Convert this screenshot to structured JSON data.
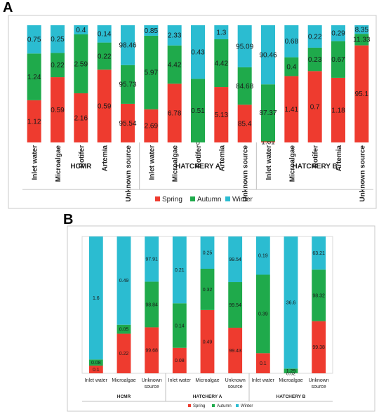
{
  "panels": [
    {
      "letter": "A"
    },
    {
      "letter": "B"
    }
  ],
  "colors": {
    "Spring": "#ee3b2f",
    "Autumn": "#1faa4b",
    "Winter": "#2bbcd1"
  },
  "chart_data": [
    {
      "type": "bar",
      "stacked": true,
      "percent_stacked": true,
      "panel": "A",
      "legend": {
        "position": "bottom",
        "entries": [
          "Spring",
          "Autumn",
          "Winter"
        ]
      },
      "groups": [
        {
          "label": "HCMR",
          "categories": [
            "Inlet water",
            "Microalgae",
            "Rotifer",
            "Artemia",
            "Unknown source"
          ]
        },
        {
          "label": "HATCHERY A",
          "categories": [
            "Inlet water",
            "Microalgae",
            "Rotifer",
            "Artemia",
            "Unknown source"
          ]
        },
        {
          "label": "HATCHERY B",
          "categories": [
            "Inlet water",
            "Microalgae",
            "Rotifer",
            "Artemia",
            "Unknown source"
          ]
        }
      ],
      "categories": [
        "Inlet water",
        "Microalgae",
        "Rotifer",
        "Artemia",
        "Unknown source",
        "Inlet water",
        "Microalgae",
        "Rotifer",
        "Artemia",
        "Unknown source",
        "Inlet water",
        "Microalgae",
        "Rotifer",
        "Artemia",
        "Unknown source"
      ],
      "series": [
        {
          "name": "Spring",
          "values": [
            1.12,
            0.59,
            2.16,
            0.59,
            95.54,
            2.69,
            6.78,
            0,
            5.13,
            85.4,
            1.61,
            1.41,
            0.7,
            1.18,
            95.1
          ]
        },
        {
          "name": "Autumn",
          "values": [
            1.24,
            0.22,
            2.59,
            0.22,
            95.73,
            5.97,
            4.42,
            0.51,
            4.42,
            84.68,
            87.37,
            0.4,
            0.23,
            0.67,
            11.33
          ]
        },
        {
          "name": "Winter",
          "values": [
            0.75,
            0.25,
            0.4,
            0.14,
            98.46,
            0.85,
            2.33,
            0.43,
            1.3,
            95.09,
            90.46,
            0.68,
            0.22,
            0.29,
            8.35
          ]
        }
      ]
    },
    {
      "type": "bar",
      "stacked": true,
      "percent_stacked": true,
      "panel": "B",
      "legend": {
        "position": "bottom",
        "entries": [
          "Spring",
          "Autumn",
          "Winter"
        ]
      },
      "groups": [
        {
          "label": "HCMR",
          "categories": [
            "Inlet water",
            "Microalgae",
            "Unknown source"
          ]
        },
        {
          "label": "HATCHERY A",
          "categories": [
            "Inlet water",
            "Microalgae",
            "Unknown source"
          ]
        },
        {
          "label": "HATCHERY B",
          "categories": [
            "Inlet water",
            "Microalgae",
            "Unknown source"
          ]
        }
      ],
      "categories": [
        "Inlet water",
        "Microalgae",
        "Unknown source",
        "Inlet water",
        "Microalgae",
        "Unknown source",
        "Inlet water",
        "Microalgae",
        "Unknown source"
      ],
      "series": [
        {
          "name": "Spring",
          "values": [
            0.1,
            0.22,
            99.68,
            0.08,
            0.49,
            99.43,
            0.1,
            0.02,
            99.38
          ]
        },
        {
          "name": "Autumn",
          "values": [
            0.08,
            0.05,
            98.84,
            0.14,
            0.32,
            99.54,
            0.39,
            1.29,
            98.32
          ]
        },
        {
          "name": "Winter",
          "values": [
            1.6,
            0.49,
            97.91,
            0.21,
            0.25,
            99.54,
            0.19,
            36.6,
            63.21
          ]
        }
      ]
    }
  ]
}
